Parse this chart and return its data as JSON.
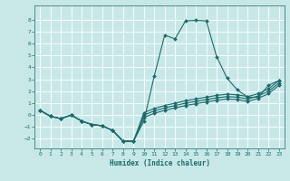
{
  "xlabel": "Humidex (Indice chaleur)",
  "background_color": "#c8e8e8",
  "grid_color": "#ffffff",
  "line_color": "#1a6b6b",
  "xlim": [
    -0.5,
    23.5
  ],
  "ylim": [
    -2.8,
    9.2
  ],
  "yticks": [
    -2,
    -1,
    0,
    1,
    2,
    3,
    4,
    5,
    6,
    7,
    8
  ],
  "xticks": [
    0,
    1,
    2,
    3,
    4,
    5,
    6,
    7,
    8,
    9,
    10,
    11,
    12,
    13,
    14,
    15,
    16,
    17,
    18,
    19,
    20,
    21,
    22,
    23
  ],
  "lines": [
    {
      "x": [
        0,
        1,
        2,
        3,
        4,
        5,
        6,
        7,
        8,
        9,
        10,
        11,
        12,
        13,
        14,
        15,
        16,
        17,
        18,
        19,
        20,
        21,
        22,
        23
      ],
      "y": [
        0.4,
        -0.1,
        -0.3,
        0.0,
        -0.5,
        -0.8,
        -0.9,
        -1.3,
        -2.2,
        -2.2,
        -0.5,
        3.3,
        6.7,
        6.4,
        7.9,
        7.95,
        7.9,
        4.9,
        3.1,
        2.1,
        1.5,
        1.5,
        2.5,
        2.9
      ]
    },
    {
      "x": [
        0,
        1,
        2,
        3,
        4,
        5,
        6,
        7,
        8,
        9,
        10,
        11,
        12,
        13,
        14,
        15,
        16,
        17,
        18,
        19,
        20,
        21,
        22,
        23
      ],
      "y": [
        0.4,
        -0.1,
        -0.3,
        0.0,
        -0.5,
        -0.8,
        -0.9,
        -1.3,
        -2.2,
        -2.2,
        0.2,
        0.55,
        0.8,
        1.0,
        1.2,
        1.35,
        1.5,
        1.65,
        1.75,
        1.7,
        1.55,
        1.8,
        2.2,
        2.9
      ]
    },
    {
      "x": [
        0,
        1,
        2,
        3,
        4,
        5,
        6,
        7,
        8,
        9,
        10,
        11,
        12,
        13,
        14,
        15,
        16,
        17,
        18,
        19,
        20,
        21,
        22,
        23
      ],
      "y": [
        0.4,
        -0.1,
        -0.3,
        0.0,
        -0.5,
        -0.8,
        -0.9,
        -1.3,
        -2.2,
        -2.2,
        0.0,
        0.35,
        0.6,
        0.8,
        1.0,
        1.15,
        1.3,
        1.45,
        1.55,
        1.5,
        1.35,
        1.6,
        2.0,
        2.7
      ]
    },
    {
      "x": [
        0,
        1,
        2,
        3,
        4,
        5,
        6,
        7,
        8,
        9,
        10,
        11,
        12,
        13,
        14,
        15,
        16,
        17,
        18,
        19,
        20,
        21,
        22,
        23
      ],
      "y": [
        0.4,
        -0.1,
        -0.3,
        0.0,
        -0.5,
        -0.8,
        -0.9,
        -1.3,
        -2.2,
        -2.2,
        -0.2,
        0.15,
        0.4,
        0.6,
        0.8,
        0.95,
        1.1,
        1.25,
        1.35,
        1.3,
        1.15,
        1.4,
        1.8,
        2.5
      ]
    }
  ],
  "marker": "D",
  "markersize": 2.0,
  "linewidth": 0.8
}
